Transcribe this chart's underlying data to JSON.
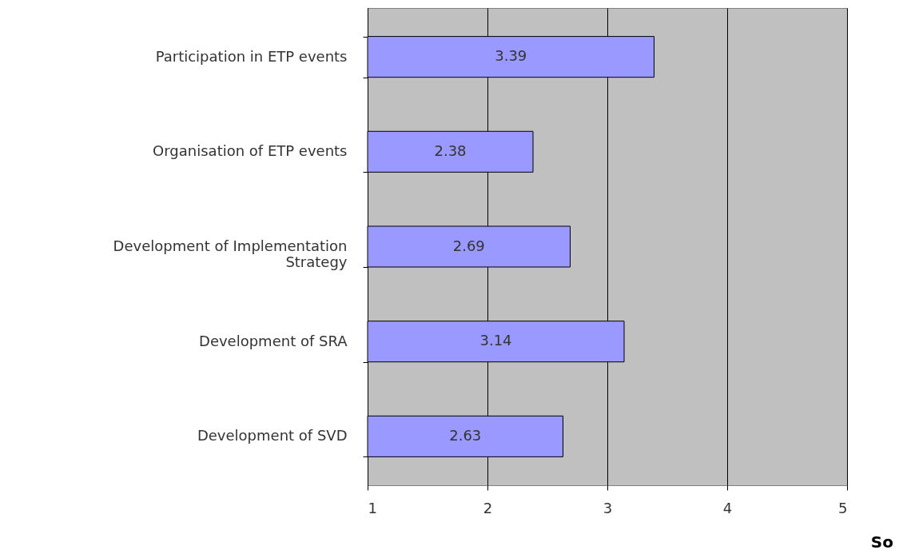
{
  "chart_data": {
    "type": "bar",
    "orientation": "horizontal",
    "categories": [
      "Participation in ETP events",
      "Organisation of ETP events",
      "Development of Implementation Strategy",
      "Development of SRA",
      "Development of SVD"
    ],
    "values": [
      3.39,
      2.38,
      2.69,
      3.14,
      2.63
    ],
    "color": "#9999ff",
    "xlim": [
      1,
      5
    ],
    "xticks": [
      1,
      2,
      3,
      4,
      5
    ],
    "grid": "x",
    "data_labels": true,
    "annotations": [
      "So"
    ]
  }
}
